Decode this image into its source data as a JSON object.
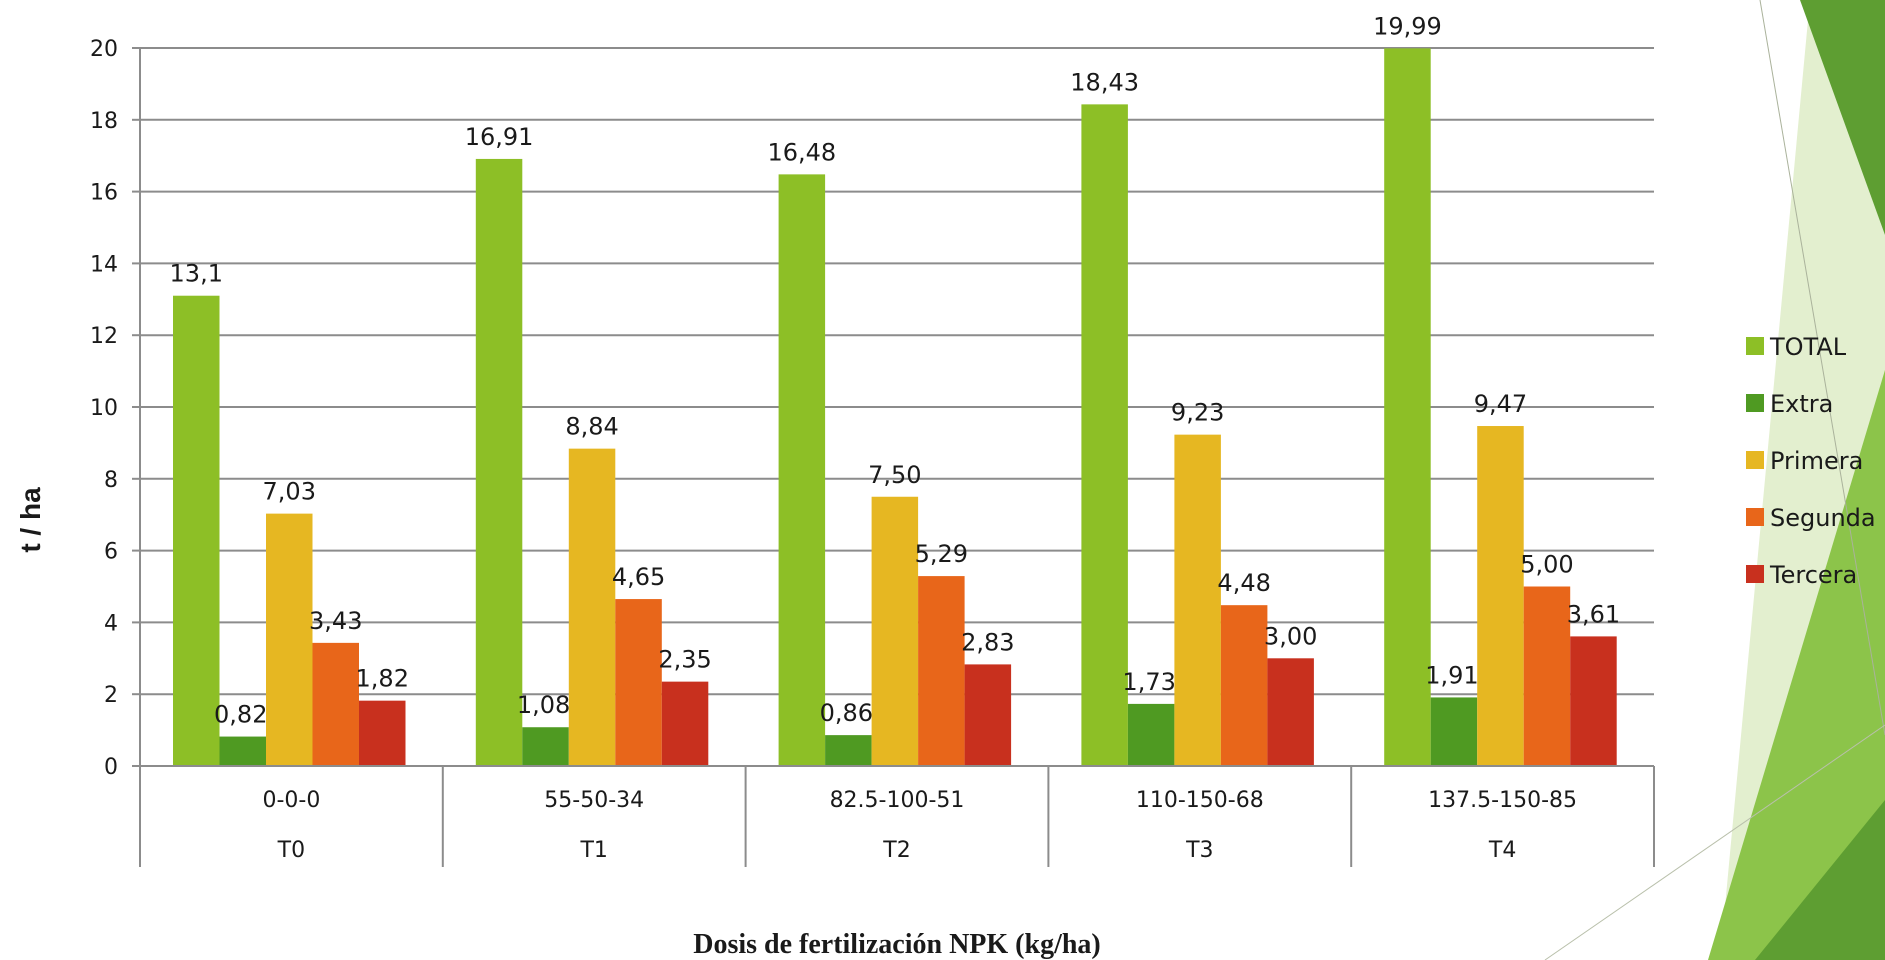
{
  "chart_data": {
    "type": "bar",
    "xlabel": "Dosis de fertilización NPK (kg/ha)",
    "ylabel": "t / ha",
    "ylim": [
      0,
      20
    ],
    "yticks": [
      0,
      2,
      4,
      6,
      8,
      10,
      12,
      14,
      16,
      18,
      20
    ],
    "grid": true,
    "legend_position": "right",
    "categories": [
      {
        "dose": "0-0-0",
        "treatment": "T0"
      },
      {
        "dose": "55-50-34",
        "treatment": "T1"
      },
      {
        "dose": "82.5-100-51",
        "treatment": "T2"
      },
      {
        "dose": "110-150-68",
        "treatment": "T3"
      },
      {
        "dose": "137.5-150-85",
        "treatment": "T4"
      }
    ],
    "series": [
      {
        "name": "TOTAL",
        "color": "#8dbf26",
        "values": [
          13.1,
          16.91,
          16.48,
          18.43,
          19.99
        ],
        "labels": [
          "13,1",
          "16,91",
          "16,48",
          "18,43",
          "19,99"
        ]
      },
      {
        "name": "Extra",
        "color": "#4f9a22",
        "values": [
          0.82,
          1.08,
          0.86,
          1.73,
          1.91
        ],
        "labels": [
          "0,82",
          "1,08",
          "0,86",
          "1,73",
          "1,91"
        ]
      },
      {
        "name": "Primera",
        "color": "#e6b722",
        "values": [
          7.03,
          8.84,
          7.5,
          9.23,
          9.47
        ],
        "labels": [
          "7,03",
          "8,84",
          "7,50",
          "9,23",
          "9,47"
        ]
      },
      {
        "name": "Segunda",
        "color": "#e8661a",
        "values": [
          3.43,
          4.65,
          5.29,
          4.48,
          5.0
        ],
        "labels": [
          "3,43",
          "4,65",
          "5,29",
          "4,48",
          "5,00"
        ]
      },
      {
        "name": "Tercera",
        "color": "#c8301e",
        "values": [
          1.82,
          2.35,
          2.83,
          3.0,
          3.61
        ],
        "labels": [
          "1,82",
          "2,35",
          "2,83",
          "3,00",
          "3,61"
        ]
      }
    ]
  },
  "decor": {
    "dark_green": "#5e9e32",
    "mid_green": "#8cc44a",
    "light_green": "#e3efcf"
  }
}
